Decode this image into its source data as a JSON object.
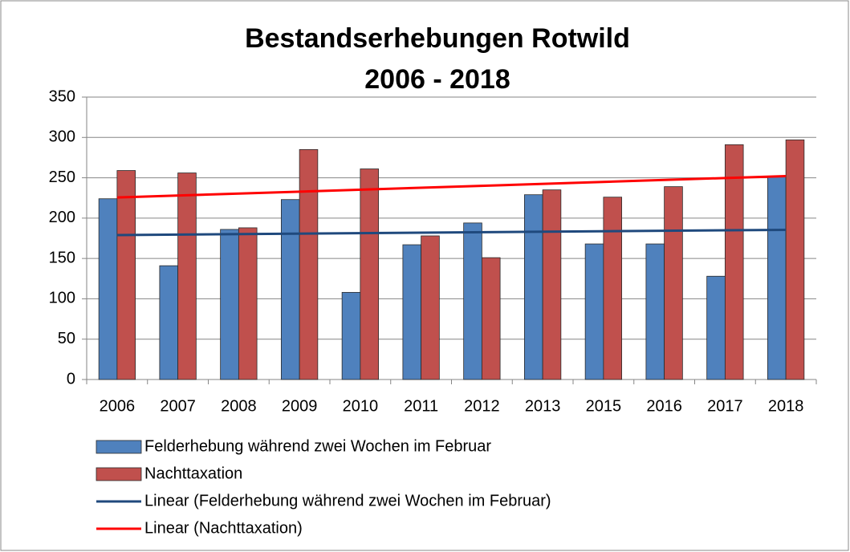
{
  "chart_data": {
    "type": "bar",
    "title": "Bestandserhebungen Rotwild",
    "subtitle": "2006 - 2018",
    "categories": [
      "2006",
      "2007",
      "2008",
      "2009",
      "2010",
      "2011",
      "2012",
      "2013",
      "2015",
      "2016",
      "2017",
      "2018"
    ],
    "series": [
      {
        "name": "Felderhebung während zwei Wochen im Februar",
        "color": "#4f81bd",
        "values": [
          224,
          141,
          186,
          223,
          108,
          167,
          194,
          229,
          168,
          168,
          128,
          251
        ]
      },
      {
        "name": "Nachttaxation",
        "color": "#c0504d",
        "values": [
          259,
          256,
          188,
          285,
          261,
          178,
          151,
          235,
          226,
          239,
          291,
          297
        ]
      }
    ],
    "trendlines": [
      {
        "name": "Linear (Felderhebung während zwei Wochen im Februar)",
        "color": "#1f497d",
        "series": 0
      },
      {
        "name": "Linear (Nachttaxation)",
        "color": "#ff0000",
        "series": 1
      }
    ],
    "ylim": [
      0,
      350
    ],
    "yticks": [
      0,
      50,
      100,
      150,
      200,
      250,
      300,
      350
    ],
    "grid": true
  }
}
